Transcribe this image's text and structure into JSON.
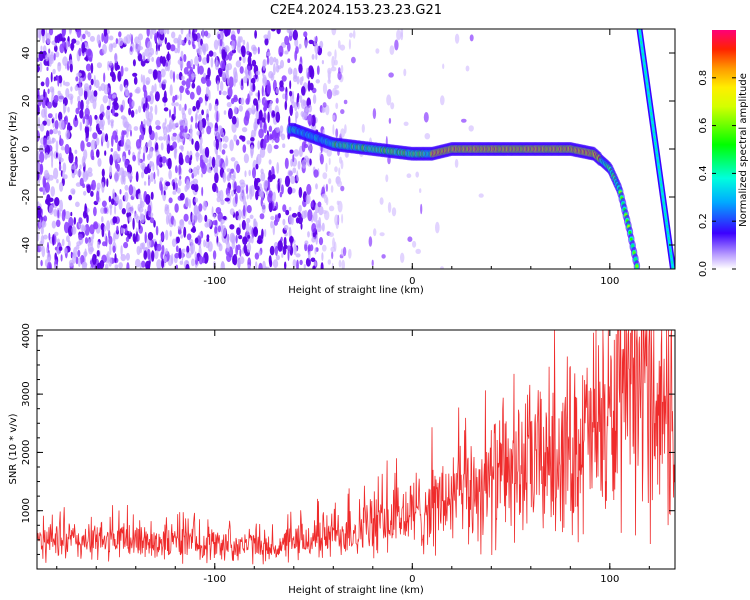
{
  "title": "C2E4.2024.153.23.23.G21",
  "chart_data": [
    {
      "type": "heatmap",
      "xlabel": "Height of straight line (km)",
      "ylabel": "Frequency (Hz)",
      "xlim": [
        -190,
        133
      ],
      "ylim": [
        -50,
        50
      ],
      "xticks": [
        -100,
        0,
        100
      ],
      "yticks": [
        -40,
        -20,
        0,
        20,
        40
      ],
      "colorbar": {
        "label": "Normalized spectral amplitude",
        "range": [
          0,
          1
        ],
        "ticks": [
          0.0,
          0.2,
          0.4,
          0.6,
          0.8
        ]
      },
      "main_trace": [
        [
          -60,
          8
        ],
        [
          -50,
          5
        ],
        [
          -40,
          2
        ],
        [
          -30,
          1
        ],
        [
          -20,
          0
        ],
        [
          -10,
          -1
        ],
        [
          0,
          -2
        ],
        [
          10,
          -2
        ],
        [
          20,
          0
        ],
        [
          40,
          0
        ],
        [
          60,
          0
        ],
        [
          80,
          0
        ],
        [
          92,
          -2
        ],
        [
          100,
          -8
        ],
        [
          105,
          -17
        ],
        [
          110,
          -34
        ],
        [
          114,
          -50
        ]
      ],
      "secondary_trace": [
        [
          115,
          50
        ],
        [
          132,
          -50
        ]
      ],
      "grid": false
    },
    {
      "type": "line",
      "xlabel": "Height of straight line (km)",
      "ylabel": "SNR (10 * v/v)",
      "xlim": [
        -190,
        133
      ],
      "ylim": [
        0,
        4100
      ],
      "xticks": [
        -100,
        0,
        100
      ],
      "yticks": [
        1000,
        2000,
        3000,
        4000
      ],
      "color": "#ef2b2b",
      "envelope": {
        "x": [
          -190,
          -160,
          -140,
          -120,
          -100,
          -80,
          -70,
          -60,
          -40,
          -20,
          0,
          20,
          40,
          60,
          80,
          100,
          110,
          118,
          125,
          133
        ],
        "y": [
          500,
          480,
          500,
          470,
          430,
          410,
          350,
          450,
          600,
          750,
          950,
          1200,
          1500,
          1800,
          2100,
          2500,
          2900,
          3300,
          2800,
          2500
        ]
      },
      "grid": false
    }
  ]
}
